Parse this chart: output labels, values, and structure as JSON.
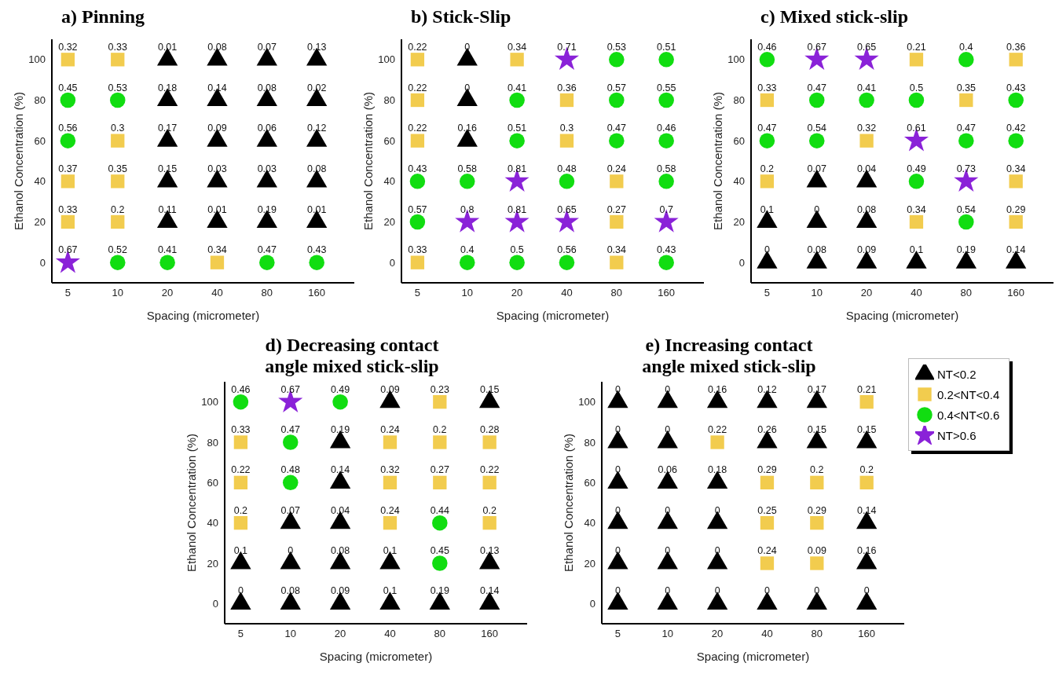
{
  "chart_data": [
    {
      "type": "scatter",
      "title": "a) Pinning",
      "xlabel": "Spacing (micrometer)",
      "ylabel": "Ethanol Concentration (%)",
      "log": "x",
      "xlim": [
        4,
        270
      ],
      "xticks": [
        5,
        10,
        20,
        40,
        80,
        160
      ],
      "ylim": [
        -10,
        110
      ],
      "yticks": [
        0,
        20,
        40,
        60,
        80,
        100
      ],
      "legend": false,
      "series": [
        {
          "color": "#000000",
          "marker": "triangle",
          "x": [
            20,
            40,
            80,
            160,
            20,
            40,
            80,
            160,
            20,
            40,
            80,
            160,
            20,
            40,
            80,
            160,
            20,
            40,
            80,
            160
          ],
          "values": [
            100,
            100,
            100,
            100,
            80,
            80,
            80,
            80,
            60,
            60,
            60,
            60,
            40,
            40,
            40,
            40,
            20,
            20,
            20,
            20
          ]
        },
        {
          "color": "#f2cc4e",
          "marker": "square",
          "x": [
            5,
            10,
            10,
            5,
            10,
            5,
            10,
            40
          ],
          "values": [
            100,
            100,
            60,
            40,
            40,
            20,
            20,
            0
          ]
        },
        {
          "color": "#11dd11",
          "marker": "circle",
          "x": [
            5,
            10,
            5,
            10,
            20,
            80,
            160
          ],
          "values": [
            80,
            80,
            60,
            0,
            0,
            0,
            0
          ]
        },
        {
          "color": "#8a22d8",
          "marker": "star",
          "x": [
            5
          ],
          "values": [
            0
          ]
        }
      ],
      "annotations": [
        {
          "text": "0.32",
          "x": 5,
          "y": 100
        },
        {
          "text": "0.33",
          "x": 10,
          "y": 100
        },
        {
          "text": "0.01",
          "x": 20,
          "y": 100
        },
        {
          "text": "0.08",
          "x": 40,
          "y": 100
        },
        {
          "text": "0.07",
          "x": 80,
          "y": 100
        },
        {
          "text": "0.13",
          "x": 160,
          "y": 100
        },
        {
          "text": "0.45",
          "x": 5,
          "y": 80
        },
        {
          "text": "0.53",
          "x": 10,
          "y": 80
        },
        {
          "text": "0.18",
          "x": 20,
          "y": 80
        },
        {
          "text": "0.14",
          "x": 40,
          "y": 80
        },
        {
          "text": "0.08",
          "x": 80,
          "y": 80
        },
        {
          "text": "0.02",
          "x": 160,
          "y": 80
        },
        {
          "text": "0.56",
          "x": 5,
          "y": 60
        },
        {
          "text": "0.3",
          "x": 10,
          "y": 60
        },
        {
          "text": "0.17",
          "x": 20,
          "y": 60
        },
        {
          "text": "0.09",
          "x": 40,
          "y": 60
        },
        {
          "text": "0.06",
          "x": 80,
          "y": 60
        },
        {
          "text": "0.12",
          "x": 160,
          "y": 60
        },
        {
          "text": "0.37",
          "x": 5,
          "y": 40
        },
        {
          "text": "0.35",
          "x": 10,
          "y": 40
        },
        {
          "text": "0.15",
          "x": 20,
          "y": 40
        },
        {
          "text": "0.03",
          "x": 40,
          "y": 40
        },
        {
          "text": "0.03",
          "x": 80,
          "y": 40
        },
        {
          "text": "0.08",
          "x": 160,
          "y": 40
        },
        {
          "text": "0.33",
          "x": 5,
          "y": 20
        },
        {
          "text": "0.2",
          "x": 10,
          "y": 20
        },
        {
          "text": "0.11",
          "x": 20,
          "y": 20
        },
        {
          "text": "0.01",
          "x": 40,
          "y": 20
        },
        {
          "text": "0.19",
          "x": 80,
          "y": 20
        },
        {
          "text": "0.01",
          "x": 160,
          "y": 20
        },
        {
          "text": "0.67",
          "x": 5,
          "y": 0
        },
        {
          "text": "0.52",
          "x": 10,
          "y": 0
        },
        {
          "text": "0.41",
          "x": 20,
          "y": 0
        },
        {
          "text": "0.34",
          "x": 40,
          "y": 0
        },
        {
          "text": "0.47",
          "x": 80,
          "y": 0
        },
        {
          "text": "0.43",
          "x": 160,
          "y": 0
        }
      ]
    },
    {
      "type": "scatter",
      "title": "b) Stick-Slip",
      "xlabel": "Spacing (micrometer)",
      "ylabel": "Ethanol Concentration (%)",
      "log": "x",
      "xlim": [
        4,
        270
      ],
      "xticks": [
        5,
        10,
        20,
        40,
        80,
        160
      ],
      "ylim": [
        -10,
        110
      ],
      "yticks": [
        0,
        20,
        40,
        60,
        80,
        100
      ],
      "legend": false,
      "series": [
        {
          "color": "#000000",
          "marker": "triangle",
          "x": [
            10,
            10,
            10
          ],
          "values": [
            100,
            80,
            60
          ]
        },
        {
          "color": "#f2cc4e",
          "marker": "square",
          "x": [
            5,
            20,
            5,
            40,
            5,
            40,
            80,
            80,
            5,
            80
          ],
          "values": [
            100,
            100,
            80,
            80,
            60,
            60,
            40,
            20,
            0,
            0
          ]
        },
        {
          "color": "#11dd11",
          "marker": "circle",
          "x": [
            80,
            160,
            20,
            80,
            160,
            20,
            80,
            160,
            5,
            10,
            40,
            160,
            5,
            10,
            20,
            40,
            160
          ],
          "values": [
            100,
            100,
            80,
            80,
            80,
            60,
            60,
            60,
            40,
            40,
            40,
            40,
            20,
            0,
            0,
            0,
            0
          ]
        },
        {
          "color": "#8a22d8",
          "marker": "star",
          "x": [
            40,
            20,
            10,
            20,
            40,
            160
          ],
          "values": [
            100,
            40,
            20,
            20,
            20,
            20
          ]
        }
      ],
      "annotations": [
        {
          "text": "0.22",
          "x": 5,
          "y": 100
        },
        {
          "text": "0",
          "x": 10,
          "y": 100
        },
        {
          "text": "0.34",
          "x": 20,
          "y": 100
        },
        {
          "text": "0.71",
          "x": 40,
          "y": 100
        },
        {
          "text": "0.53",
          "x": 80,
          "y": 100
        },
        {
          "text": "0.51",
          "x": 160,
          "y": 100
        },
        {
          "text": "0.22",
          "x": 5,
          "y": 80
        },
        {
          "text": "0",
          "x": 10,
          "y": 80
        },
        {
          "text": "0.41",
          "x": 20,
          "y": 80
        },
        {
          "text": "0.36",
          "x": 40,
          "y": 80
        },
        {
          "text": "0.57",
          "x": 80,
          "y": 80
        },
        {
          "text": "0.55",
          "x": 160,
          "y": 80
        },
        {
          "text": "0.22",
          "x": 5,
          "y": 60
        },
        {
          "text": "0.16",
          "x": 10,
          "y": 60
        },
        {
          "text": "0.51",
          "x": 20,
          "y": 60
        },
        {
          "text": "0.3",
          "x": 40,
          "y": 60
        },
        {
          "text": "0.47",
          "x": 80,
          "y": 60
        },
        {
          "text": "0.46",
          "x": 160,
          "y": 60
        },
        {
          "text": "0.43",
          "x": 5,
          "y": 40
        },
        {
          "text": "0.58",
          "x": 10,
          "y": 40
        },
        {
          "text": "0.81",
          "x": 20,
          "y": 40
        },
        {
          "text": "0.48",
          "x": 40,
          "y": 40
        },
        {
          "text": "0.24",
          "x": 80,
          "y": 40
        },
        {
          "text": "0.58",
          "x": 160,
          "y": 40
        },
        {
          "text": "0.57",
          "x": 5,
          "y": 20
        },
        {
          "text": "0.8",
          "x": 10,
          "y": 20
        },
        {
          "text": "0.81",
          "x": 20,
          "y": 20
        },
        {
          "text": "0.65",
          "x": 40,
          "y": 20
        },
        {
          "text": "0.27",
          "x": 80,
          "y": 20
        },
        {
          "text": "0.7",
          "x": 160,
          "y": 20
        },
        {
          "text": "0.33",
          "x": 5,
          "y": 0
        },
        {
          "text": "0.4",
          "x": 10,
          "y": 0
        },
        {
          "text": "0.5",
          "x": 20,
          "y": 0
        },
        {
          "text": "0.56",
          "x": 40,
          "y": 0
        },
        {
          "text": "0.34",
          "x": 80,
          "y": 0
        },
        {
          "text": "0.43",
          "x": 160,
          "y": 0
        }
      ]
    },
    {
      "type": "scatter",
      "title": "c) Mixed stick-slip",
      "xlabel": "Spacing (micrometer)",
      "ylabel": "Ethanol Concentration (%)",
      "log": "x",
      "xlim": [
        4,
        270
      ],
      "xticks": [
        5,
        10,
        20,
        40,
        80,
        160
      ],
      "ylim": [
        -10,
        110
      ],
      "yticks": [
        0,
        20,
        40,
        60,
        80,
        100
      ],
      "legend": false,
      "series": [
        {
          "color": "#000000",
          "marker": "triangle",
          "x": [
            10,
            20,
            5,
            10,
            20,
            5,
            10,
            20,
            40,
            80,
            160
          ],
          "values": [
            40,
            40,
            20,
            20,
            20,
            0,
            0,
            0,
            0,
            0,
            0
          ]
        },
        {
          "color": "#f2cc4e",
          "marker": "square",
          "x": [
            40,
            160,
            5,
            80,
            20,
            5,
            160,
            40,
            160
          ],
          "values": [
            100,
            100,
            80,
            80,
            60,
            40,
            40,
            20,
            20
          ]
        },
        {
          "color": "#11dd11",
          "marker": "circle",
          "x": [
            5,
            80,
            10,
            20,
            40,
            160,
            5,
            10,
            80,
            160,
            40,
            80
          ],
          "values": [
            100,
            100,
            80,
            80,
            80,
            80,
            60,
            60,
            60,
            60,
            40,
            20
          ]
        },
        {
          "color": "#8a22d8",
          "marker": "star",
          "x": [
            10,
            20,
            40,
            80
          ],
          "values": [
            100,
            100,
            60,
            40
          ]
        }
      ],
      "annotations": [
        {
          "text": "0.46",
          "x": 5,
          "y": 100
        },
        {
          "text": "0.67",
          "x": 10,
          "y": 100
        },
        {
          "text": "0.65",
          "x": 20,
          "y": 100
        },
        {
          "text": "0.21",
          "x": 40,
          "y": 100
        },
        {
          "text": "0.4",
          "x": 80,
          "y": 100
        },
        {
          "text": "0.36",
          "x": 160,
          "y": 100
        },
        {
          "text": "0.33",
          "x": 5,
          "y": 80
        },
        {
          "text": "0.47",
          "x": 10,
          "y": 80
        },
        {
          "text": "0.41",
          "x": 20,
          "y": 80
        },
        {
          "text": "0.5",
          "x": 40,
          "y": 80
        },
        {
          "text": "0.35",
          "x": 80,
          "y": 80
        },
        {
          "text": "0.43",
          "x": 160,
          "y": 80
        },
        {
          "text": "0.47",
          "x": 5,
          "y": 60
        },
        {
          "text": "0.54",
          "x": 10,
          "y": 60
        },
        {
          "text": "0.32",
          "x": 20,
          "y": 60
        },
        {
          "text": "0.61",
          "x": 40,
          "y": 60
        },
        {
          "text": "0.47",
          "x": 80,
          "y": 60
        },
        {
          "text": "0.42",
          "x": 160,
          "y": 60
        },
        {
          "text": "0.2",
          "x": 5,
          "y": 40
        },
        {
          "text": "0.07",
          "x": 10,
          "y": 40
        },
        {
          "text": "0.04",
          "x": 20,
          "y": 40
        },
        {
          "text": "0.49",
          "x": 40,
          "y": 40
        },
        {
          "text": "0.73",
          "x": 80,
          "y": 40
        },
        {
          "text": "0.34",
          "x": 160,
          "y": 40
        },
        {
          "text": "0.1",
          "x": 5,
          "y": 20
        },
        {
          "text": "0",
          "x": 10,
          "y": 20
        },
        {
          "text": "0.08",
          "x": 20,
          "y": 20
        },
        {
          "text": "0.34",
          "x": 40,
          "y": 20
        },
        {
          "text": "0.54",
          "x": 80,
          "y": 20
        },
        {
          "text": "0.29",
          "x": 160,
          "y": 20
        },
        {
          "text": "0",
          "x": 5,
          "y": 0
        },
        {
          "text": "0.08",
          "x": 10,
          "y": 0
        },
        {
          "text": "0.09",
          "x": 20,
          "y": 0
        },
        {
          "text": "0.1",
          "x": 40,
          "y": 0
        },
        {
          "text": "0.19",
          "x": 80,
          "y": 0
        },
        {
          "text": "0.14",
          "x": 160,
          "y": 0
        }
      ]
    },
    {
      "type": "scatter",
      "title": "d) Decreasing contact\nangle mixed stick-slip",
      "xlabel": "Spacing (micrometer)",
      "ylabel": "Ethanol Concentration (%)",
      "log": "x",
      "xlim": [
        4,
        270
      ],
      "xticks": [
        5,
        10,
        20,
        40,
        80,
        160
      ],
      "ylim": [
        -10,
        110
      ],
      "yticks": [
        0,
        20,
        40,
        60,
        80,
        100
      ],
      "legend": false,
      "series": [
        {
          "color": "#000000",
          "marker": "triangle",
          "x": [
            40,
            160,
            20,
            20,
            10,
            20,
            5,
            10,
            20,
            40,
            160,
            5,
            10,
            20,
            40,
            80,
            160
          ],
          "values": [
            100,
            100,
            80,
            60,
            40,
            40,
            20,
            20,
            20,
            20,
            20,
            0,
            0,
            0,
            0,
            0,
            0
          ]
        },
        {
          "color": "#f2cc4e",
          "marker": "square",
          "x": [
            80,
            5,
            40,
            80,
            160,
            5,
            40,
            80,
            160,
            5,
            40,
            160
          ],
          "values": [
            100,
            80,
            80,
            80,
            80,
            60,
            60,
            60,
            60,
            40,
            40,
            40
          ]
        },
        {
          "color": "#11dd11",
          "marker": "circle",
          "x": [
            5,
            20,
            10,
            10,
            80,
            80
          ],
          "values": [
            100,
            100,
            80,
            60,
            40,
            20
          ]
        },
        {
          "color": "#8a22d8",
          "marker": "star",
          "x": [
            10
          ],
          "values": [
            100
          ]
        }
      ],
      "annotations": [
        {
          "text": "0.46",
          "x": 5,
          "y": 100
        },
        {
          "text": "0.67",
          "x": 10,
          "y": 100
        },
        {
          "text": "0.49",
          "x": 20,
          "y": 100
        },
        {
          "text": "0.09",
          "x": 40,
          "y": 100
        },
        {
          "text": "0.23",
          "x": 80,
          "y": 100
        },
        {
          "text": "0.15",
          "x": 160,
          "y": 100
        },
        {
          "text": "0.33",
          "x": 5,
          "y": 80
        },
        {
          "text": "0.47",
          "x": 10,
          "y": 80
        },
        {
          "text": "0.19",
          "x": 20,
          "y": 80
        },
        {
          "text": "0.24",
          "x": 40,
          "y": 80
        },
        {
          "text": "0.2",
          "x": 80,
          "y": 80
        },
        {
          "text": "0.28",
          "x": 160,
          "y": 80
        },
        {
          "text": "0.22",
          "x": 5,
          "y": 60
        },
        {
          "text": "0.48",
          "x": 10,
          "y": 60
        },
        {
          "text": "0.14",
          "x": 20,
          "y": 60
        },
        {
          "text": "0.32",
          "x": 40,
          "y": 60
        },
        {
          "text": "0.27",
          "x": 80,
          "y": 60
        },
        {
          "text": "0.22",
          "x": 160,
          "y": 60
        },
        {
          "text": "0.2",
          "x": 5,
          "y": 40
        },
        {
          "text": "0.07",
          "x": 10,
          "y": 40
        },
        {
          "text": "0.04",
          "x": 20,
          "y": 40
        },
        {
          "text": "0.24",
          "x": 40,
          "y": 40
        },
        {
          "text": "0.44",
          "x": 80,
          "y": 40
        },
        {
          "text": "0.2",
          "x": 160,
          "y": 40
        },
        {
          "text": "0.1",
          "x": 5,
          "y": 20
        },
        {
          "text": "0",
          "x": 10,
          "y": 20
        },
        {
          "text": "0.08",
          "x": 20,
          "y": 20
        },
        {
          "text": "0.1",
          "x": 40,
          "y": 20
        },
        {
          "text": "0.45",
          "x": 80,
          "y": 20
        },
        {
          "text": "0.13",
          "x": 160,
          "y": 20
        },
        {
          "text": "0",
          "x": 5,
          "y": 0
        },
        {
          "text": "0.08",
          "x": 10,
          "y": 0
        },
        {
          "text": "0.09",
          "x": 20,
          "y": 0
        },
        {
          "text": "0.1",
          "x": 40,
          "y": 0
        },
        {
          "text": "0.19",
          "x": 80,
          "y": 0
        },
        {
          "text": "0.14",
          "x": 160,
          "y": 0
        }
      ]
    },
    {
      "type": "scatter",
      "title": "e) Increasing contact\nangle mixed stick-slip",
      "xlabel": "Spacing (micrometer)",
      "ylabel": "Ethanol Concentration (%)",
      "log": "x",
      "xlim": [
        4,
        270
      ],
      "xticks": [
        5,
        10,
        20,
        40,
        80,
        160
      ],
      "ylim": [
        -10,
        110
      ],
      "yticks": [
        0,
        20,
        40,
        60,
        80,
        100
      ],
      "legend": "right",
      "series": [
        {
          "name": "NT<0.2",
          "color": "#000000",
          "marker": "triangle",
          "x": [
            5,
            10,
            20,
            40,
            80,
            5,
            10,
            40,
            80,
            160,
            5,
            10,
            20,
            5,
            10,
            20,
            160,
            5,
            10,
            20,
            160,
            5,
            10,
            20,
            40,
            80,
            160
          ],
          "values": [
            100,
            100,
            100,
            100,
            100,
            80,
            80,
            80,
            80,
            80,
            60,
            60,
            60,
            40,
            40,
            40,
            40,
            20,
            20,
            20,
            20,
            0,
            0,
            0,
            0,
            0,
            0
          ]
        },
        {
          "name": "0.2<NT<0.4",
          "color": "#f2cc4e",
          "marker": "square",
          "x": [
            160,
            20,
            40,
            80,
            160,
            40,
            80,
            40,
            80
          ],
          "values": [
            100,
            80,
            60,
            60,
            60,
            40,
            40,
            20,
            20
          ]
        },
        {
          "name": "0.4<NT<0.6",
          "color": "#11dd11",
          "marker": "circle"
        },
        {
          "name": "NT>0.6",
          "color": "#8a22d8",
          "marker": "star"
        }
      ],
      "annotations": [
        {
          "text": "0",
          "x": 5,
          "y": 100
        },
        {
          "text": "0",
          "x": 10,
          "y": 100
        },
        {
          "text": "0.16",
          "x": 20,
          "y": 100
        },
        {
          "text": "0.12",
          "x": 40,
          "y": 100
        },
        {
          "text": "0.17",
          "x": 80,
          "y": 100
        },
        {
          "text": "0.21",
          "x": 160,
          "y": 100
        },
        {
          "text": "0",
          "x": 5,
          "y": 80
        },
        {
          "text": "0",
          "x": 10,
          "y": 80
        },
        {
          "text": "0.22",
          "x": 20,
          "y": 80
        },
        {
          "text": "0.26",
          "x": 40,
          "y": 80
        },
        {
          "text": "0.15",
          "x": 80,
          "y": 80
        },
        {
          "text": "0.15",
          "x": 160,
          "y": 80
        },
        {
          "text": "0",
          "x": 5,
          "y": 60
        },
        {
          "text": "0.06",
          "x": 10,
          "y": 60
        },
        {
          "text": "0.18",
          "x": 20,
          "y": 60
        },
        {
          "text": "0.29",
          "x": 40,
          "y": 60
        },
        {
          "text": "0.2",
          "x": 80,
          "y": 60
        },
        {
          "text": "0.2",
          "x": 160,
          "y": 60
        },
        {
          "text": "0",
          "x": 5,
          "y": 40
        },
        {
          "text": "0",
          "x": 10,
          "y": 40
        },
        {
          "text": "0",
          "x": 20,
          "y": 40
        },
        {
          "text": "0.25",
          "x": 40,
          "y": 40
        },
        {
          "text": "0.29",
          "x": 80,
          "y": 40
        },
        {
          "text": "0.14",
          "x": 160,
          "y": 40
        },
        {
          "text": "0",
          "x": 5,
          "y": 20
        },
        {
          "text": "0",
          "x": 10,
          "y": 20
        },
        {
          "text": "0",
          "x": 20,
          "y": 20
        },
        {
          "text": "0.24",
          "x": 40,
          "y": 20
        },
        {
          "text": "0.09",
          "x": 80,
          "y": 20
        },
        {
          "text": "0.16",
          "x": 160,
          "y": 20
        },
        {
          "text": "0",
          "x": 5,
          "y": 0
        },
        {
          "text": "0",
          "x": 10,
          "y": 0
        },
        {
          "text": "0",
          "x": 20,
          "y": 0
        },
        {
          "text": "0",
          "x": 40,
          "y": 0
        },
        {
          "text": "0",
          "x": 80,
          "y": 0
        },
        {
          "text": "0",
          "x": 160,
          "y": 0
        }
      ]
    }
  ]
}
